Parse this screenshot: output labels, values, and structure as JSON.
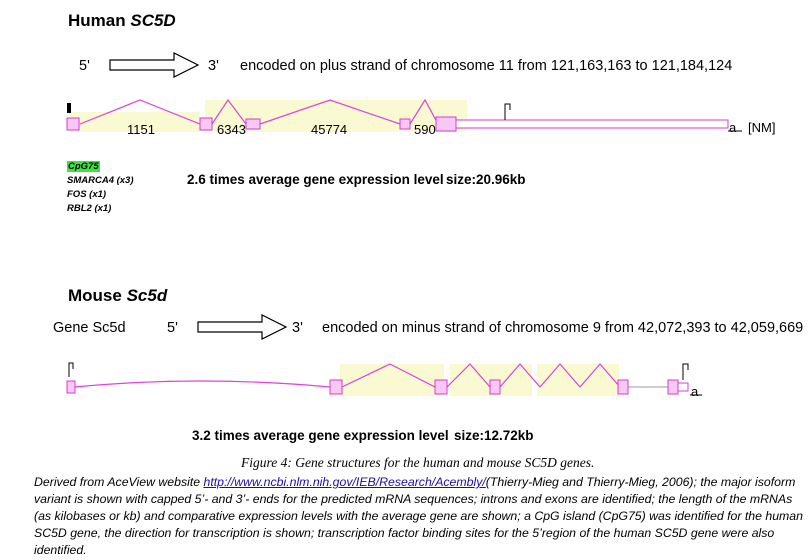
{
  "human": {
    "title_prefix": "Human",
    "title_gene": "SC5D",
    "five_prime": "5'",
    "three_prime": "3'",
    "strand_text": "encoded on plus strand of chromosome 11 from 121,163,163 to 121,184,124",
    "lengths": [
      "1151",
      "6343",
      "45774",
      "590"
    ],
    "end_label": "a",
    "nm_label": "[NM]",
    "cpg_label": "CpG75",
    "tf_sites": [
      "SMARCA4 (x3)",
      "FOS (x1)",
      "RBL2 (x1)"
    ],
    "expression": "2.6 times average gene expression level",
    "size": "size:20.96kb"
  },
  "mouse": {
    "title_prefix": "Mouse",
    "title_gene": "Sc5d",
    "gene_label": "Gene Sc5d",
    "five_prime": "5'",
    "three_prime": "3'",
    "strand_text": "encoded on minus strand of chromosome 9 from 42,072,393 to 42,059,669",
    "end_label": "a",
    "expression": "3.2 times average gene expression level",
    "size": "size:12.72kb"
  },
  "colors": {
    "exon_fill": "#f6c8f3",
    "exon_stroke": "#d63cd0",
    "intron": "#e040dc",
    "highlight": "#fafad2",
    "cpg": "#39e639"
  },
  "figure": {
    "label": "Figure 4:",
    "title": "Gene structures for the human and mouse SC5D genes."
  },
  "caption": {
    "prefix": "Derived from AceView website ",
    "link": "http://www.ncbi.nlm.nih.gov/IEB/Research/Acembly/",
    "text": "(Thierry-Mieg and Thierry-Mieg, 2006); the major isoform variant is shown with capped 5’- and 3’- ends for the predicted mRNA sequences; introns and exons are identified; the length of the mRNAs (as kilobases or kb) and comparative expression levels with the average gene are shown; a CpG island (CpG75) was identified for the human SC5D gene, the direction for transcription is shown; transcription factor binding sites for the 5’region of the human SC5D gene were also identified."
  }
}
